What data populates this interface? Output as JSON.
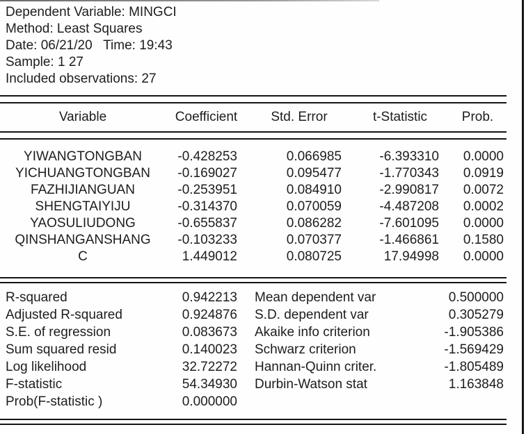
{
  "header": {
    "lines": [
      "Dependent Variable: MINGCI",
      "Method: Least Squares",
      "Date: 06/21/20   Time: 19:43",
      "Sample: 1 27",
      "Included observations: 27"
    ]
  },
  "coef_table": {
    "columns": [
      "Variable",
      "Coefficient",
      "Std. Error",
      "t-Statistic",
      "Prob."
    ],
    "rows": [
      {
        "variable": "YIWANGTONGBAN",
        "coefficient": "-0.428253",
        "std_error": "0.066985",
        "t_statistic": "-6.393310",
        "prob": "0.0000"
      },
      {
        "variable": "YICHUANGTONGBAN",
        "coefficient": "-0.169027",
        "std_error": "0.095477",
        "t_statistic": "-1.770343",
        "prob": "0.0919"
      },
      {
        "variable": "FAZHIJIANGUAN",
        "coefficient": "-0.253951",
        "std_error": "0.084910",
        "t_statistic": "-2.990817",
        "prob": "0.0072"
      },
      {
        "variable": "SHENGTAIYIJU",
        "coefficient": "-0.314370",
        "std_error": "0.070059",
        "t_statistic": "-4.487208",
        "prob": "0.0002"
      },
      {
        "variable": "YAOSULIUDONG",
        "coefficient": "-0.655837",
        "std_error": "0.086282",
        "t_statistic": "-7.601095",
        "prob": "0.0000"
      },
      {
        "variable": "QINSHANGANSHANG",
        "coefficient": "-0.103233",
        "std_error": "0.070377",
        "t_statistic": "-1.466861",
        "prob": "0.1580"
      },
      {
        "variable": "C",
        "coefficient": "1.449012",
        "std_error": "0.080725",
        "t_statistic": "17.94998",
        "prob": "0.0000"
      }
    ]
  },
  "summary_stats": {
    "left": [
      {
        "label": "R-squared",
        "value": "0.942213"
      },
      {
        "label": "Adjusted R-squared",
        "value": "0.924876"
      },
      {
        "label": "S.E. of regression",
        "value": "0.083673"
      },
      {
        "label": "Sum squared resid",
        "value": "0.140023"
      },
      {
        "label": "Log likelihood",
        "value": "32.72272"
      },
      {
        "label": "F-statistic",
        "value": "54.34930"
      },
      {
        "label": "Prob(F-statistic )",
        "value": "0.000000"
      }
    ],
    "right": [
      {
        "label": "Mean dependent var",
        "value": "0.500000"
      },
      {
        "label": "S.D. dependent var",
        "value": "0.305279"
      },
      {
        "label": "Akaike info criterion",
        "value": "-1.905386"
      },
      {
        "label": "Schwarz criterion",
        "value": "-1.569429"
      },
      {
        "label": "Hannan-Quinn criter.",
        "value": "-1.805489"
      },
      {
        "label": "Durbin-Watson stat",
        "value": "1.163848"
      }
    ]
  }
}
